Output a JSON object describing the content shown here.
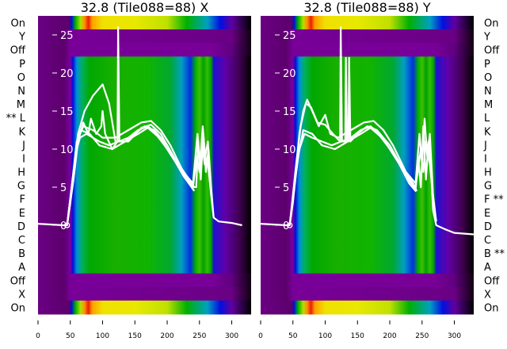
{
  "chart_data": [
    {
      "type": "heatmap",
      "title": "32.8 (Tile088=88) X",
      "rows": [
        "On",
        "Y",
        "Off",
        "P",
        "O",
        "N",
        "M",
        "** L",
        "K",
        "J",
        "I",
        "H",
        "G",
        "F",
        "E",
        "D",
        "C",
        "B",
        "A",
        "Off",
        "X",
        "On"
      ],
      "row_label_side": "left",
      "xlim": [
        0,
        330
      ],
      "x_ticks": [
        "0",
        "50",
        "100",
        "150",
        "200",
        "250",
        "300"
      ],
      "y_ticks": [
        "25",
        "20",
        "15",
        "10",
        "5",
        "0"
      ],
      "overlay_ylim": [
        -30,
        28
      ],
      "overlay_series": [
        {
          "name": "line1",
          "points": [
            [
              0,
              0.2
            ],
            [
              40,
              0
            ],
            [
              45,
              0
            ],
            [
              50,
              3
            ],
            [
              55,
              7
            ],
            [
              60,
              10
            ],
            [
              65,
              11.5
            ],
            [
              75,
              12
            ],
            [
              85,
              11.5
            ],
            [
              95,
              11
            ],
            [
              110,
              10.5
            ],
            [
              125,
              11
            ],
            [
              140,
              11.5
            ],
            [
              155,
              12.5
            ],
            [
              170,
              13
            ],
            [
              185,
              12
            ],
            [
              200,
              10
            ],
            [
              215,
              8
            ],
            [
              230,
              6
            ],
            [
              240,
              5
            ],
            [
              245,
              5
            ],
            [
              248,
              11
            ],
            [
              252,
              6
            ],
            [
              256,
              12
            ],
            [
              260,
              7
            ],
            [
              264,
              10
            ],
            [
              268,
              5
            ],
            [
              272,
              1
            ],
            [
              280,
              0.5
            ],
            [
              300,
              0.3
            ],
            [
              316,
              0
            ]
          ]
        },
        {
          "name": "line2",
          "points": [
            [
              45,
              0
            ],
            [
              52,
              5
            ],
            [
              60,
              11
            ],
            [
              70,
              13
            ],
            [
              85,
              12.5
            ],
            [
              100,
              11.5
            ],
            [
              120,
              11.5
            ],
            [
              140,
              12.5
            ],
            [
              160,
              13.5
            ],
            [
              175,
              13.7
            ],
            [
              190,
              12.5
            ],
            [
              205,
              10.5
            ],
            [
              225,
              7
            ],
            [
              240,
              5.5
            ],
            [
              247,
              12
            ],
            [
              251,
              8
            ],
            [
              255,
              13
            ],
            [
              259,
              9
            ],
            [
              263,
              11
            ],
            [
              268,
              4
            ],
            [
              272,
              1
            ]
          ]
        },
        {
          "name": "line3",
          "points": [
            [
              45,
              0
            ],
            [
              55,
              7
            ],
            [
              62,
              12
            ],
            [
              72,
              15
            ],
            [
              85,
              17
            ],
            [
              100,
              18.5
            ],
            [
              110,
              16
            ],
            [
              120,
              11
            ],
            [
              135,
              11
            ],
            [
              150,
              12
            ],
            [
              165,
              13
            ],
            [
              180,
              12.5
            ],
            [
              200,
              10.5
            ],
            [
              220,
              7.5
            ],
            [
              240,
              5
            ],
            [
              246,
              9
            ],
            [
              250,
              7
            ],
            [
              254,
              11
            ],
            [
              258,
              8
            ],
            [
              262,
              9
            ],
            [
              268,
              4
            ]
          ]
        },
        {
          "name": "line4",
          "points": [
            [
              45,
              0
            ],
            [
              55,
              6
            ],
            [
              62,
              11
            ],
            [
              70,
              13.5
            ],
            [
              78,
              12
            ],
            [
              82,
              14
            ],
            [
              90,
              12
            ],
            [
              98,
              13
            ],
            [
              100,
              15
            ],
            [
              104,
              12
            ],
            [
              115,
              10
            ],
            [
              123,
              11
            ],
            [
              124,
              26
            ],
            [
              126,
              11
            ],
            [
              140,
              11
            ],
            [
              160,
              12.8
            ],
            [
              175,
              13.2
            ],
            [
              190,
              12
            ],
            [
              210,
              9
            ],
            [
              230,
              6.5
            ],
            [
              242,
              5
            ]
          ]
        },
        {
          "name": "line5",
          "points": [
            [
              45,
              0
            ],
            [
              58,
              9
            ],
            [
              66,
              12.5
            ],
            [
              80,
              12
            ],
            [
              95,
              10.5
            ],
            [
              115,
              10
            ],
            [
              135,
              11
            ],
            [
              155,
              12
            ],
            [
              170,
              12.8
            ],
            [
              185,
              11.7
            ],
            [
              205,
              9.5
            ],
            [
              225,
              6.5
            ],
            [
              242,
              4.5
            ]
          ]
        }
      ],
      "min_marker": {
        "x": 45,
        "y": 0
      }
    },
    {
      "type": "heatmap",
      "title": "32.8 (Tile088=88) Y",
      "rows": [
        "On",
        "Y",
        "Off",
        "P",
        "O",
        "N",
        "M",
        "L",
        "K",
        "J",
        "I",
        "H",
        "G",
        "F **",
        "E",
        "D",
        "C",
        "B **",
        "A",
        "Off",
        "X",
        "On"
      ],
      "row_label_side": "right",
      "xlim": [
        0,
        330
      ],
      "x_ticks": [
        "0",
        "50",
        "100",
        "150",
        "200",
        "250",
        "300"
      ],
      "y_ticks": [
        "25",
        "20",
        "15",
        "10",
        "5",
        "0"
      ],
      "overlay_ylim": [
        -30,
        28
      ],
      "overlay_series": [
        {
          "name": "line1",
          "points": [
            [
              0,
              0.2
            ],
            [
              40,
              0
            ],
            [
              45,
              0
            ],
            [
              50,
              3
            ],
            [
              55,
              7
            ],
            [
              60,
              10
            ],
            [
              68,
              12
            ],
            [
              80,
              11.5
            ],
            [
              95,
              11
            ],
            [
              110,
              10.5
            ],
            [
              125,
              11
            ],
            [
              140,
              11.5
            ],
            [
              155,
              12.5
            ],
            [
              170,
              13
            ],
            [
              185,
              12
            ],
            [
              200,
              10
            ],
            [
              215,
              8
            ],
            [
              230,
              5.5
            ],
            [
              240,
              4.5
            ],
            [
              244,
              9
            ],
            [
              248,
              5
            ],
            [
              252,
              13
            ],
            [
              256,
              6
            ],
            [
              260,
              11
            ],
            [
              264,
              7
            ],
            [
              267,
              2
            ],
            [
              272,
              0
            ],
            [
              285,
              -0.5
            ],
            [
              300,
              -1
            ],
            [
              330,
              -1.2
            ]
          ]
        },
        {
          "name": "line2",
          "points": [
            [
              45,
              0
            ],
            [
              52,
              5
            ],
            [
              60,
              12
            ],
            [
              66,
              15
            ],
            [
              72,
              16.5
            ],
            [
              80,
              15
            ],
            [
              90,
              13
            ],
            [
              100,
              14.5
            ],
            [
              108,
              12
            ],
            [
              120,
              11.5
            ],
            [
              140,
              12.5
            ],
            [
              160,
              13.5
            ],
            [
              175,
              13.7
            ],
            [
              190,
              12.5
            ],
            [
              205,
              10.5
            ],
            [
              225,
              7
            ],
            [
              240,
              5.5
            ],
            [
              246,
              12
            ],
            [
              250,
              8
            ],
            [
              254,
              14
            ],
            [
              258,
              9
            ],
            [
              262,
              12
            ],
            [
              267,
              4
            ],
            [
              272,
              0.5
            ]
          ]
        },
        {
          "name": "line3",
          "points": [
            [
              45,
              0
            ],
            [
              55,
              8
            ],
            [
              62,
              13
            ],
            [
              70,
              16
            ],
            [
              78,
              15.5
            ],
            [
              88,
              13.5
            ],
            [
              100,
              13.2
            ],
            [
              112,
              12
            ],
            [
              123,
              11
            ],
            [
              124,
              26
            ],
            [
              126,
              11
            ],
            [
              131,
              11
            ],
            [
              132,
              22
            ],
            [
              134,
              11
            ],
            [
              136,
              11
            ],
            [
              137,
              22
            ],
            [
              139,
              11
            ],
            [
              150,
              12
            ],
            [
              165,
              13
            ],
            [
              180,
              12.5
            ],
            [
              200,
              10.5
            ],
            [
              220,
              7.5
            ],
            [
              240,
              5
            ],
            [
              248,
              10
            ],
            [
              252,
              7
            ],
            [
              256,
              11
            ],
            [
              262,
              8
            ],
            [
              268,
              3
            ]
          ]
        },
        {
          "name": "line4",
          "points": [
            [
              45,
              0
            ],
            [
              58,
              9
            ],
            [
              66,
              12.5
            ],
            [
              80,
              12
            ],
            [
              95,
              10.5
            ],
            [
              115,
              10
            ],
            [
              135,
              11
            ],
            [
              155,
              12
            ],
            [
              170,
              12.8
            ],
            [
              185,
              11.7
            ],
            [
              205,
              9.5
            ],
            [
              225,
              6.5
            ],
            [
              242,
              4.5
            ]
          ]
        }
      ],
      "min_marker": {
        "x": 45,
        "y": 0
      }
    }
  ]
}
